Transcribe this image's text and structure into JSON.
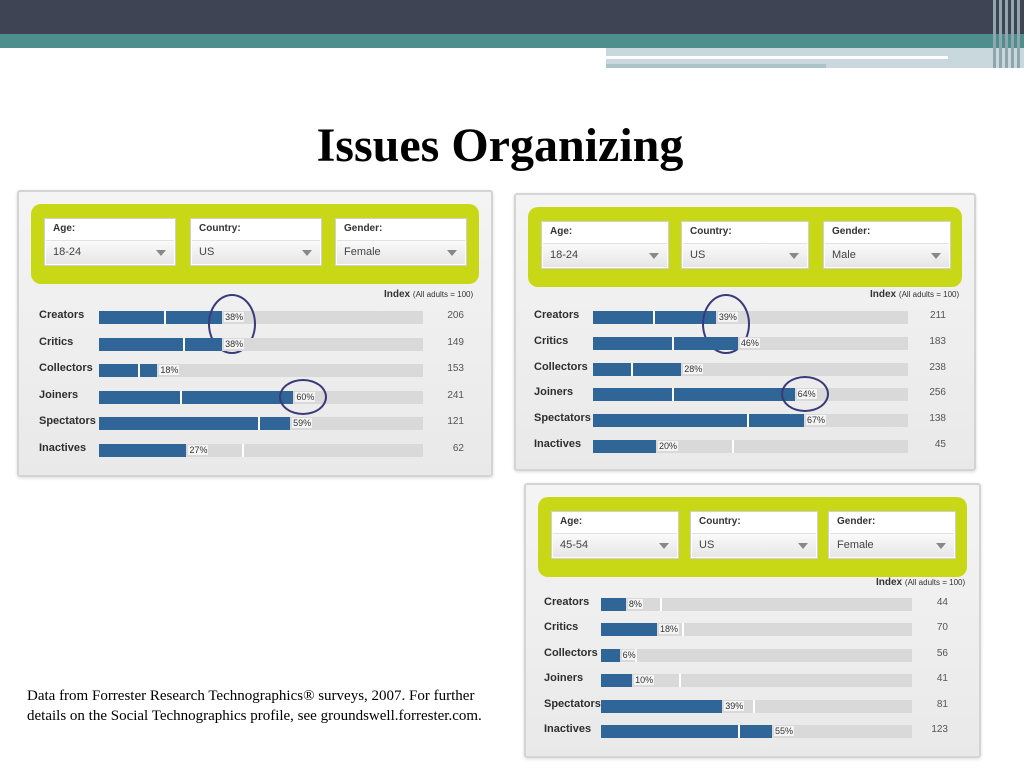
{
  "slide": {
    "title": "Issues Organizing",
    "footnote": "Data from Forrester Research Technographics® surveys, 2007. For further details on the Social Technographics profile, see groundswell.forrester.com."
  },
  "colors": {
    "bar": "#2f6597",
    "track": "#d9d9d9",
    "filter_bar": "#c9d816",
    "circle": "#3a3a7a"
  },
  "chart_data": [
    {
      "type": "bar",
      "panel": "top-left",
      "filters": [
        {
          "label": "Age:",
          "value": "18-24"
        },
        {
          "label": "Country:",
          "value": "US"
        },
        {
          "label": "Gender:",
          "value": "Female"
        }
      ],
      "index_label": "Index",
      "index_note": "(All adults = 100)",
      "categories": [
        "Creators",
        "Critics",
        "Collectors",
        "Joiners",
        "Spectators",
        "Inactives"
      ],
      "values": [
        38,
        38,
        18,
        60,
        59,
        27
      ],
      "value_labels": [
        "38%",
        "38%",
        "18%",
        "60%",
        "59%",
        "27%"
      ],
      "reference": [
        20,
        26,
        12,
        25,
        49,
        44
      ],
      "index": [
        "206",
        "149",
        "153",
        "241",
        "121",
        "62"
      ],
      "circled": [
        0,
        1,
        3
      ],
      "xlim": [
        0,
        100
      ]
    },
    {
      "type": "bar",
      "panel": "top-right",
      "filters": [
        {
          "label": "Age:",
          "value": "18-24"
        },
        {
          "label": "Country:",
          "value": "US"
        },
        {
          "label": "Gender:",
          "value": "Male"
        }
      ],
      "index_label": "Index",
      "index_note": "(All adults = 100)",
      "categories": [
        "Creators",
        "Critics",
        "Collectors",
        "Joiners",
        "Spectators",
        "Inactives"
      ],
      "values": [
        39,
        46,
        28,
        64,
        67,
        20
      ],
      "value_labels": [
        "39%",
        "46%",
        "28%",
        "64%",
        "67%",
        "20%"
      ],
      "reference": [
        19,
        25,
        12,
        25,
        49,
        44
      ],
      "index": [
        "211",
        "183",
        "238",
        "256",
        "138",
        "45"
      ],
      "circled": [
        0,
        1,
        3
      ],
      "xlim": [
        0,
        100
      ]
    },
    {
      "type": "bar",
      "panel": "bottom-right",
      "filters": [
        {
          "label": "Age:",
          "value": "45-54"
        },
        {
          "label": "Country:",
          "value": "US"
        },
        {
          "label": "Gender:",
          "value": "Female"
        }
      ],
      "index_label": "Index",
      "index_note": "(All adults = 100)",
      "categories": [
        "Creators",
        "Critics",
        "Collectors",
        "Joiners",
        "Spectators",
        "Inactives"
      ],
      "values": [
        8,
        18,
        6,
        10,
        39,
        55
      ],
      "value_labels": [
        "8%",
        "18%",
        "6%",
        "10%",
        "39%",
        "55%"
      ],
      "reference": [
        19,
        26,
        11,
        25,
        49,
        44
      ],
      "index": [
        "44",
        "70",
        "56",
        "41",
        "81",
        "123"
      ],
      "circled": [],
      "xlim": [
        0,
        100
      ]
    }
  ]
}
